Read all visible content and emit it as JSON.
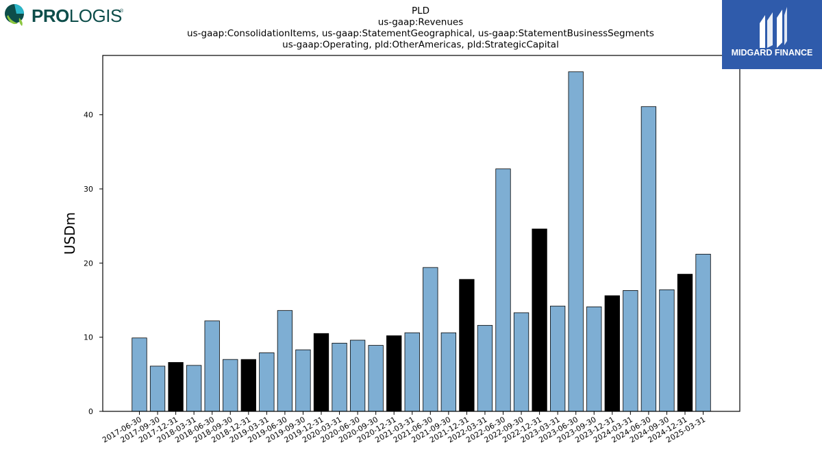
{
  "logos": {
    "left_text_bold": "PRO",
    "left_text_regular": "LOGIS",
    "left_mark": "®",
    "right_text": "MIDGARD FINANCE",
    "left_icon": "globe-leaf-icon",
    "right_icon": "mf-monogram-icon"
  },
  "colors": {
    "bar_default": "#7eaed3",
    "bar_highlight": "#000000",
    "left_logo_text": "#0d4d4a",
    "right_logo_bg": "#2f5bab"
  },
  "chart_data": {
    "type": "bar",
    "title_lines": [
      "PLD",
      "us-gaap:Revenues",
      "us-gaap:ConsolidationItems, us-gaap:StatementGeographical, us-gaap:StatementBusinessSegments",
      "us-gaap:Operating, pld:OtherAmericas, pld:StrategicCapital"
    ],
    "xlabel": "",
    "ylabel": "USDm",
    "ylim": [
      0,
      48
    ],
    "yticks": [
      0,
      10,
      20,
      30,
      40
    ],
    "grid": false,
    "categories": [
      "2017-06-30",
      "2017-09-30",
      "2017-12-31",
      "2018-03-31",
      "2018-06-30",
      "2018-09-30",
      "2018-12-31",
      "2019-03-31",
      "2019-06-30",
      "2019-09-30",
      "2019-12-31",
      "2020-03-31",
      "2020-06-30",
      "2020-09-30",
      "2020-12-31",
      "2021-03-31",
      "2021-06-30",
      "2021-09-30",
      "2021-12-31",
      "2022-03-31",
      "2022-06-30",
      "2022-09-30",
      "2022-12-31",
      "2023-03-31",
      "2023-06-30",
      "2023-09-30",
      "2023-12-31",
      "2024-03-31",
      "2024-06-30",
      "2024-09-30",
      "2024-12-31",
      "2025-03-31"
    ],
    "values": [
      9.9,
      6.1,
      6.6,
      6.2,
      12.2,
      7.0,
      7.0,
      7.9,
      13.6,
      8.3,
      10.5,
      9.2,
      9.6,
      8.9,
      10.2,
      10.6,
      19.4,
      10.6,
      17.8,
      11.6,
      32.7,
      13.3,
      24.6,
      14.2,
      45.8,
      14.1,
      15.6,
      16.3,
      41.1,
      16.4,
      18.5,
      21.2
    ],
    "highlighted": [
      false,
      false,
      true,
      false,
      false,
      false,
      true,
      false,
      false,
      false,
      true,
      false,
      false,
      false,
      true,
      false,
      false,
      false,
      true,
      false,
      false,
      false,
      true,
      false,
      false,
      false,
      true,
      false,
      false,
      false,
      true,
      false
    ]
  }
}
